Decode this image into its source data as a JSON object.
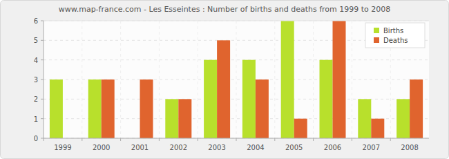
{
  "chart_data": {
    "type": "bar",
    "title": "www.map-france.com - Les Esseintes : Number of births and deaths from 1999 to 2008",
    "categories": [
      "1999",
      "2000",
      "2001",
      "2002",
      "2003",
      "2004",
      "2005",
      "2006",
      "2007",
      "2008"
    ],
    "series": [
      {
        "name": "Births",
        "color": "#b8e02c",
        "values": [
          3,
          3,
          0,
          2,
          4,
          4,
          6,
          4,
          2,
          2
        ]
      },
      {
        "name": "Deaths",
        "color": "#e0642e",
        "values": [
          0,
          3,
          3,
          2,
          5,
          3,
          1,
          6,
          1,
          3
        ]
      }
    ],
    "ylim": [
      0,
      6
    ],
    "yticks": [
      0,
      1,
      2,
      3,
      4,
      5,
      6
    ],
    "grid": true,
    "legend": "top-right"
  }
}
